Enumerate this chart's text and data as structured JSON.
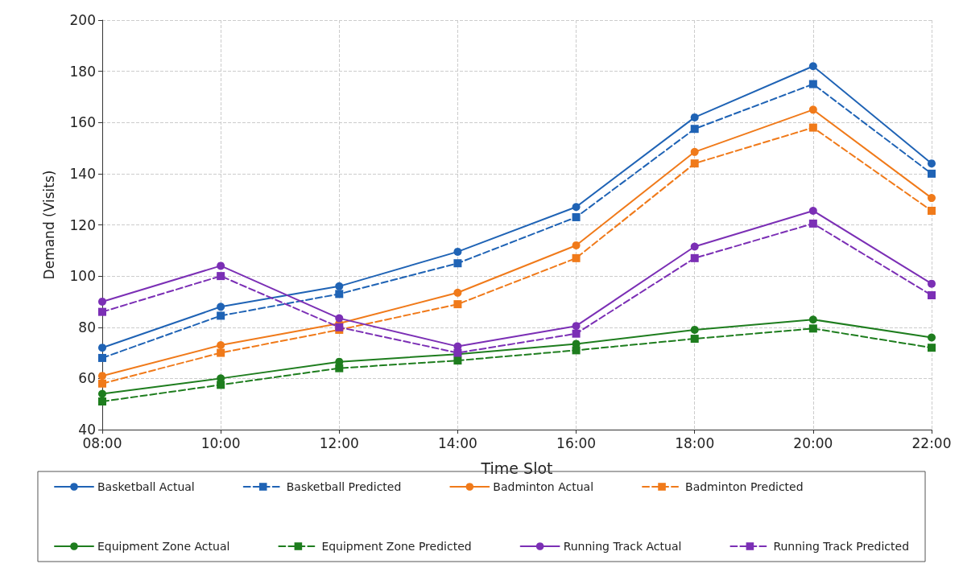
{
  "chart_data": {
    "type": "line",
    "xlabel": "Time Slot",
    "ylabel": "Demand (Visits)",
    "categories": [
      "08:00",
      "10:00",
      "12:00",
      "14:00",
      "16:00",
      "18:00",
      "20:00",
      "22:00"
    ],
    "ylim": [
      40,
      200
    ],
    "yticks": [
      40,
      60,
      80,
      100,
      120,
      140,
      160,
      180,
      200
    ],
    "grid": true,
    "legend": "bottom",
    "series": [
      {
        "name": "Basketball Actual",
        "color": "#1f63b5",
        "marker": "circle",
        "line_style": "solid",
        "values": [
          72,
          88,
          96,
          109.5,
          127,
          162,
          182,
          144
        ]
      },
      {
        "name": "Basketball Predicted",
        "color": "#1f63b5",
        "marker": "square",
        "line_style": "dashed",
        "values": [
          68,
          84.5,
          93,
          105,
          123,
          157.5,
          175,
          140
        ]
      },
      {
        "name": "Badminton Actual",
        "color": "#f07a1a",
        "marker": "circle",
        "line_style": "solid",
        "values": [
          61,
          73,
          81.5,
          93.5,
          112,
          148.5,
          165,
          130.5
        ]
      },
      {
        "name": "Badminton Predicted",
        "color": "#f07a1a",
        "marker": "square",
        "line_style": "dashed",
        "values": [
          58,
          70,
          79,
          89,
          107,
          144,
          158,
          125.5
        ]
      },
      {
        "name": "Equipment Zone Actual",
        "color": "#1e7d1e",
        "marker": "circle",
        "line_style": "solid",
        "values": [
          54,
          60,
          66.5,
          69.5,
          73.5,
          79,
          83,
          76
        ]
      },
      {
        "name": "Equipment Zone Predicted",
        "color": "#1e7d1e",
        "marker": "square",
        "line_style": "dashed",
        "values": [
          51,
          57.5,
          64,
          67,
          71,
          75.5,
          79.5,
          72
        ]
      },
      {
        "name": "Running Track Actual",
        "color": "#7b2fb5",
        "marker": "circle",
        "line_style": "solid",
        "values": [
          90,
          104,
          83.5,
          72.5,
          80.5,
          111.5,
          125.5,
          97
        ]
      },
      {
        "name": "Running Track Predicted",
        "color": "#7b2fb5",
        "marker": "square",
        "line_style": "dashed",
        "values": [
          86,
          100,
          80,
          70,
          77.5,
          107,
          120.5,
          92.5
        ]
      }
    ]
  }
}
